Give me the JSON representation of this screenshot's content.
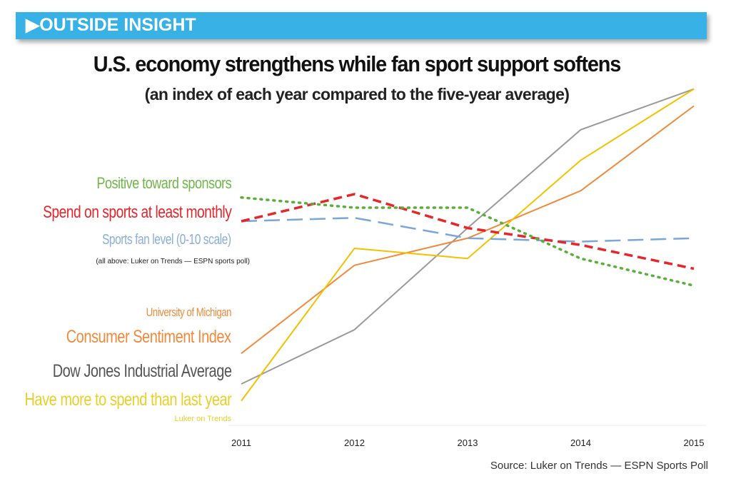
{
  "banner": {
    "icon": "play-triangle",
    "label": "OUTSIDE INSIGHT"
  },
  "chart_data": {
    "type": "line",
    "title": "U.S. economy strengthens while fan sport support softens",
    "subtitle": "(an index of each year compared to the five-year average)",
    "categories": [
      "2011",
      "2012",
      "2013",
      "2014",
      "2015"
    ],
    "ylim": [
      0,
      100
    ],
    "y_axis_shown": false,
    "grid": false,
    "legend_placement": "left",
    "series": [
      {
        "name": "Positive toward sponsors",
        "color": "#5aae3a",
        "style": "dotted",
        "values": [
          67,
          64,
          64,
          49,
          41
        ]
      },
      {
        "name": "Spend on sports at least monthly",
        "color": "#e5262b",
        "style": "dashed",
        "values": [
          60,
          68,
          58,
          53,
          46
        ]
      },
      {
        "name": "Sports fan level (0-10 scale)",
        "color": "#7aa6d8",
        "style": "longdash",
        "values": [
          60,
          61,
          55,
          54,
          55
        ]
      },
      {
        "name": "Consumer Sentiment Index",
        "name_prefix": "University of Michigan",
        "color": "#ef8a3c",
        "style": "solid",
        "values": [
          21,
          47,
          55,
          69,
          94
        ]
      },
      {
        "name": "Dow Jones Industrial Average",
        "color": "#9a9a9a",
        "style": "solid",
        "values": [
          12,
          28,
          58,
          87,
          99
        ]
      },
      {
        "name": "Have more to spend than last year",
        "color": "#f2c200",
        "style": "solid",
        "values": [
          7,
          52,
          49,
          78,
          99
        ]
      }
    ],
    "annotations": {
      "survey_note": "(all above: Luker on Trends — ESPN sports poll)",
      "yellow_note": "Luker on Trends"
    },
    "source": "Source: Luker on Trends — ESPN Sports Poll"
  }
}
